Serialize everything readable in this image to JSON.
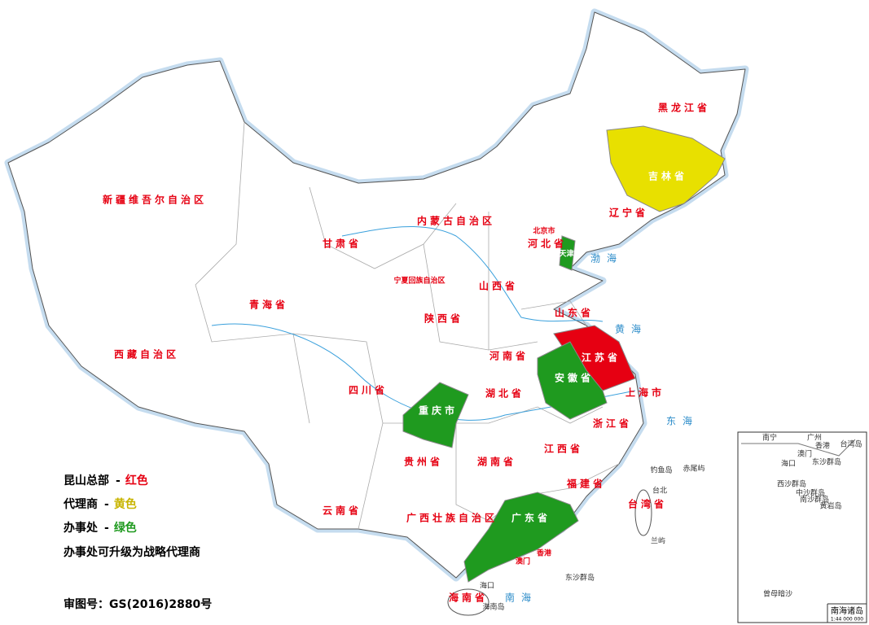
{
  "legend": [
    {
      "label": "昆山总部",
      "separator": "-",
      "color_name": "红色",
      "color": "#e60012"
    },
    {
      "label": "代理商",
      "separator": "-",
      "color_name": "黄色",
      "color": "#c8b400"
    },
    {
      "label": "办事处",
      "separator": "-",
      "color_name": "绿色",
      "color": "#1f9a1f"
    }
  ],
  "note": "办事处可升级为战略代理商",
  "approval": "审图号：GS(2016)2880号",
  "provinces": [
    {
      "name": "黑龙江省"
    },
    {
      "name": "吉林省",
      "color": "#e8e000"
    },
    {
      "name": "辽宁省"
    },
    {
      "name": "内蒙古自治区"
    },
    {
      "name": "新疆维吾尔自治区"
    },
    {
      "name": "西藏自治区"
    },
    {
      "name": "青海省"
    },
    {
      "name": "甘肃省"
    },
    {
      "name": "宁夏回族自治区"
    },
    {
      "name": "陕西省"
    },
    {
      "name": "山西省"
    },
    {
      "name": "河北省"
    },
    {
      "name": "北京市"
    },
    {
      "name": "天津市",
      "color": "#1f9a1f"
    },
    {
      "name": "山东省"
    },
    {
      "name": "河南省"
    },
    {
      "name": "江苏省",
      "color": "#e60012"
    },
    {
      "name": "安徽省",
      "color": "#1f9a1f"
    },
    {
      "name": "上海市"
    },
    {
      "name": "湖北省"
    },
    {
      "name": "四川省"
    },
    {
      "name": "重庆市",
      "color": "#1f9a1f"
    },
    {
      "name": "浙江省"
    },
    {
      "name": "江西省"
    },
    {
      "name": "湖南省"
    },
    {
      "name": "贵州省"
    },
    {
      "name": "福建省"
    },
    {
      "name": "云南省"
    },
    {
      "name": "广西壮族自治区"
    },
    {
      "name": "广东省",
      "color": "#1f9a1f"
    },
    {
      "name": "台湾省"
    },
    {
      "name": "海南省"
    },
    {
      "name": "香港"
    },
    {
      "name": "澳门"
    }
  ],
  "seas": [
    "渤海",
    "黄海",
    "东海",
    "南海"
  ],
  "places": [
    "钓鱼岛",
    "赤尾屿",
    "台北",
    "兰屿",
    "东沙群岛",
    "海口",
    "海南岛"
  ],
  "inset": {
    "title": "南海诸岛",
    "scale": "1:44 000 000",
    "places": [
      "南宁",
      "广州",
      "香港",
      "澳门",
      "海口",
      "台湾岛",
      "东沙群岛",
      "西沙群岛",
      "中沙群岛",
      "黄岩岛",
      "南沙群岛",
      "曾母暗沙"
    ]
  }
}
